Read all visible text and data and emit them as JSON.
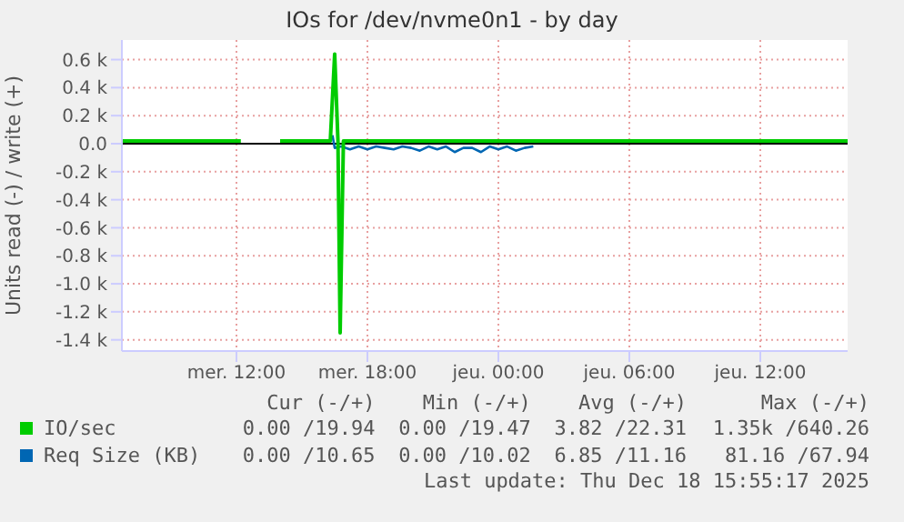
{
  "chart_data": {
    "type": "line",
    "title": "IOs for /dev/nvme0n1 - by day",
    "ylabel": "Units read (-) / write (+)",
    "xlim": [
      "2025-12-17T06:45",
      "2025-12-18T16:00"
    ],
    "xticks": [
      {
        "value": "2025-12-17T12:00",
        "label": "mer. 12:00"
      },
      {
        "value": "2025-12-17T18:00",
        "label": "mer. 18:00"
      },
      {
        "value": "2025-12-18T00:00",
        "label": "jeu. 00:00"
      },
      {
        "value": "2025-12-18T06:00",
        "label": "jeu. 06:00"
      },
      {
        "value": "2025-12-18T12:00",
        "label": "jeu. 12:00"
      }
    ],
    "ylim": [
      -1480,
      740
    ],
    "yticks": [
      {
        "value": 600,
        "label": "0.6 k"
      },
      {
        "value": 400,
        "label": "0.4 k"
      },
      {
        "value": 200,
        "label": "0.2 k"
      },
      {
        "value": 0,
        "label": "0.0"
      },
      {
        "value": -200,
        "label": "-0.2 k"
      },
      {
        "value": -400,
        "label": "-0.4 k"
      },
      {
        "value": -600,
        "label": "-0.6 k"
      },
      {
        "value": -800,
        "label": "-0.8 k"
      },
      {
        "value": -1000,
        "label": "-1.0 k"
      },
      {
        "value": -1200,
        "label": "-1.2 k"
      },
      {
        "value": -1400,
        "label": "-1.4 k"
      }
    ],
    "grid": true,
    "legend": "bottom",
    "ref_lines": [
      {
        "axis": "y",
        "value": 0,
        "color": "#000000"
      }
    ],
    "series": [
      {
        "name": "Req Size (KB)",
        "color": "#0066b3",
        "x": [
          "2025-12-17T16:24",
          "2025-12-17T16:30",
          "2025-12-17T16:48",
          "2025-12-17T17:12",
          "2025-12-17T17:36",
          "2025-12-17T18:00",
          "2025-12-17T18:24",
          "2025-12-17T18:48",
          "2025-12-17T19:12",
          "2025-12-17T19:36",
          "2025-12-17T20:00",
          "2025-12-17T20:24",
          "2025-12-17T20:48",
          "2025-12-17T21:12",
          "2025-12-17T21:36",
          "2025-12-17T22:00",
          "2025-12-17T22:24",
          "2025-12-17T22:48",
          "2025-12-17T23:12",
          "2025-12-17T23:36",
          "2025-12-18T00:00",
          "2025-12-18T00:24",
          "2025-12-18T00:48",
          "2025-12-18T01:12",
          "2025-12-18T01:36"
        ],
        "values": [
          60,
          -30,
          -20,
          -40,
          -20,
          -40,
          -20,
          -30,
          -40,
          -20,
          -30,
          -50,
          -20,
          -40,
          -20,
          -60,
          -30,
          -30,
          -60,
          -20,
          -40,
          -20,
          -50,
          -30,
          -20
        ]
      },
      {
        "name": "IO/sec",
        "color": "#00cc00",
        "x": [
          "2025-12-17T06:45",
          "2025-12-17T12:12",
          "2025-12-17T12:30",
          "2025-12-17T14:00",
          "2025-12-17T16:18",
          "2025-12-17T16:30",
          "2025-12-17T16:39",
          "2025-12-17T16:45",
          "2025-12-17T16:54",
          "2025-12-18T16:00"
        ],
        "values": [
          20,
          20,
          null,
          20,
          20,
          640,
          20,
          -1350,
          20,
          20
        ]
      }
    ],
    "annotations": [
      "Cur (-/+)",
      "Min (-/+)",
      "Avg (-/+)",
      "Max (-/+)",
      "0.00 /10.65",
      "0.00 /10.02",
      "6.85 /11.16",
      "81.16 /67.94",
      "0.00 /19.94",
      "0.00 /19.47",
      "3.82 /22.31",
      "1.35k /640.26",
      "Last update: Thu Dec 18 15:55:17 2025"
    ]
  }
}
